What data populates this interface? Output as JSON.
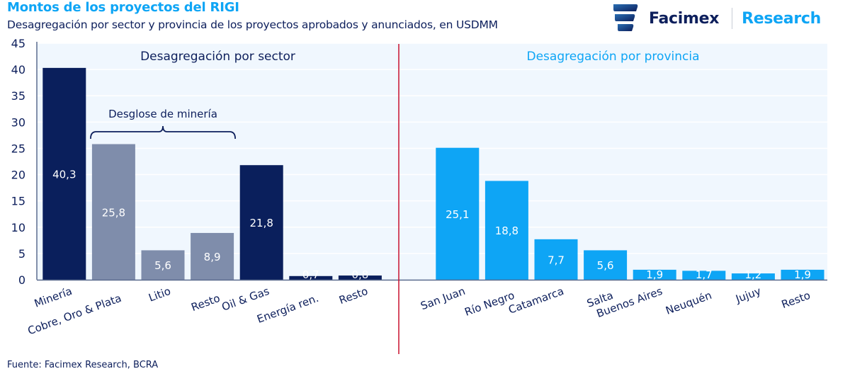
{
  "header": {
    "title": "Montos de los proyectos del RIGI",
    "subtitle": "Desagregación por sector y provincia de los proyectos aprobados y anunciados, en USDMM"
  },
  "brand": {
    "name": "Facimex",
    "division": "Research",
    "logo_icon": "facimex-logo-icon"
  },
  "footer": {
    "source": "Fuente: Facimex Research, BCRA"
  },
  "colors": {
    "navy": "#0a1f5c",
    "gray_blue": "#7f8dab",
    "sky_blue": "#0ea5f5",
    "plot_bg": "#f0f7fe",
    "divider": "#c8102e"
  },
  "chart_data": {
    "type": "bar",
    "title": "Montos de los proyectos del RIGI",
    "subtitle": "Desagregación por sector y provincia de los proyectos aprobados y anunciados, en USDMM",
    "xlabel": "",
    "ylabel": "",
    "ylim": [
      0,
      45
    ],
    "yticks": [
      0,
      5,
      10,
      15,
      20,
      25,
      30,
      35,
      40,
      45
    ],
    "grid": true,
    "legend": "none",
    "panels": [
      {
        "title": "Desagregación por sector",
        "title_color": "#0d1f5c",
        "categories": [
          "Minería",
          "Cobre, Oro & Plata",
          "Litio",
          "Resto",
          "Oil & Gas",
          "Energía ren.",
          "Resto"
        ],
        "values": [
          40.3,
          25.8,
          5.6,
          8.9,
          21.8,
          0.7,
          0.8
        ],
        "labels": [
          "40,3",
          "25,8",
          "5,6",
          "8,9",
          "21,8",
          "0,7",
          "0,8"
        ],
        "colors": [
          "#0a1f5c",
          "#7f8dab",
          "#7f8dab",
          "#7f8dab",
          "#0a1f5c",
          "#0a1f5c",
          "#0a1f5c"
        ],
        "annotation": {
          "text": "Desglose de minería",
          "spans": [
            "Cobre, Oro & Plata",
            "Litio",
            "Resto"
          ]
        }
      },
      {
        "title": "Desagregación por provincia",
        "title_color": "#0ea5f5",
        "categories": [
          "San Juan",
          "Río Negro",
          "Catamarca",
          "Salta",
          "Buenos Aires",
          "Neuquén",
          "Jujuy",
          "Resto"
        ],
        "values": [
          25.1,
          18.8,
          7.7,
          5.6,
          1.9,
          1.7,
          1.2,
          1.9
        ],
        "labels": [
          "25,1",
          "18,8",
          "7,7",
          "5,6",
          "1,9",
          "1,7",
          "1,2",
          "1,9"
        ],
        "colors": [
          "#0ea5f5",
          "#0ea5f5",
          "#0ea5f5",
          "#0ea5f5",
          "#0ea5f5",
          "#0ea5f5",
          "#0ea5f5",
          "#0ea5f5"
        ]
      }
    ],
    "source": "Fuente: Facimex Research, BCRA"
  }
}
